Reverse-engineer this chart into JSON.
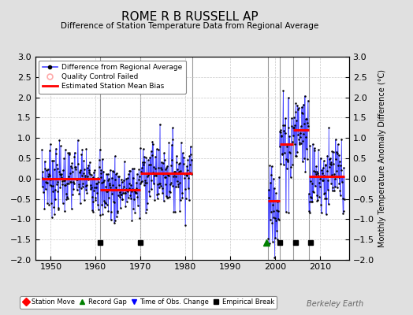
{
  "title": "ROME R B RUSSELL AP",
  "subtitle": "Difference of Station Temperature Data from Regional Average",
  "ylabel": "Monthly Temperature Anomaly Difference (°C)",
  "watermark": "Berkeley Earth",
  "xlim": [
    1946.5,
    2016.5
  ],
  "ylim": [
    -2,
    3
  ],
  "yticks": [
    -2,
    -1.5,
    -1,
    -0.5,
    0,
    0.5,
    1,
    1.5,
    2,
    2.5,
    3
  ],
  "xticks": [
    1950,
    1960,
    1970,
    1980,
    1990,
    2000,
    2010
  ],
  "background_color": "#e0e0e0",
  "plot_bg_color": "#ffffff",
  "grid_color": "#c8c8c8",
  "line_color": "#4444ff",
  "stem_color": "#8888ff",
  "marker_color": "#000000",
  "bias_color": "#ff0000",
  "sep_color": "#999999",
  "segments": [
    {
      "start": 1948.0,
      "end": 1961.0,
      "bias": 0.0,
      "mean": 0.0,
      "std": 0.42
    },
    {
      "start": 1961.0,
      "end": 1970.0,
      "bias": -0.27,
      "mean": -0.27,
      "std": 0.4
    },
    {
      "start": 1970.0,
      "end": 1981.5,
      "bias": 0.14,
      "mean": 0.14,
      "std": 0.42
    },
    {
      "start": 1998.5,
      "end": 2001.0,
      "bias": -0.55,
      "mean": -0.55,
      "std": 0.65
    },
    {
      "start": 2001.0,
      "end": 2004.0,
      "bias": 0.85,
      "mean": 0.85,
      "std": 0.6
    },
    {
      "start": 2004.0,
      "end": 2007.5,
      "bias": 1.2,
      "mean": 1.2,
      "std": 0.55
    },
    {
      "start": 2007.5,
      "end": 2015.5,
      "bias": 0.05,
      "mean": 0.05,
      "std": 0.48
    }
  ],
  "sep_lines": [
    1961.0,
    1970.0,
    1981.5,
    1998.5,
    2001.0,
    2004.0,
    2007.5
  ],
  "empirical_breaks": [
    1961.0,
    1970.0,
    2001.0,
    2004.5,
    2008.0
  ],
  "record_gap_markers": [
    1998.0
  ],
  "time_obs_markers": [],
  "station_move_markers": [],
  "marker_y": -1.57,
  "seed": 7
}
